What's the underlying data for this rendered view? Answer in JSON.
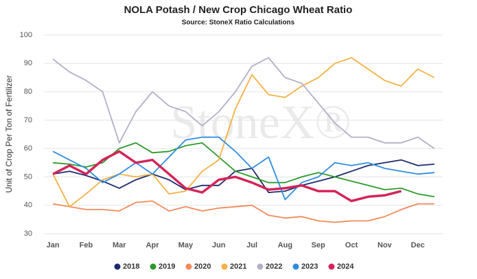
{
  "chart_data": {
    "type": "line",
    "title": "NOLA Potash / New Crop Chicago Wheat Ratio",
    "subtitle": "Source: StoneX Ratio Calculations",
    "y_label": "Unit of Crop Per Ton of Fertilizer",
    "watermark": "StoneX®",
    "categories": [
      "Jan",
      null,
      "Feb",
      null,
      "Mar",
      null,
      "Apr",
      null,
      "May",
      null,
      "Jun",
      null,
      "Jul",
      null,
      "Aug",
      null,
      "Sep",
      null,
      "Oct",
      null,
      "Nov",
      null,
      "Dec",
      null
    ],
    "ylim": [
      30,
      100
    ],
    "yticks": [
      30,
      40,
      50,
      60,
      70,
      80,
      90,
      100
    ],
    "grid": true,
    "legend": "bottom",
    "series": [
      {
        "name": "2018",
        "color": "#1b2a6e",
        "values": [
          51,
          52,
          50.5,
          48.5,
          46,
          49,
          51,
          49,
          45.5,
          47,
          47,
          52,
          53,
          44.5,
          45,
          47,
          48.5,
          50,
          52,
          54,
          55,
          56,
          54,
          54.5
        ]
      },
      {
        "name": "2019",
        "color": "#2a9a2a",
        "values": [
          55,
          54.5,
          53.5,
          55,
          60,
          62,
          58.5,
          59,
          61,
          62,
          57,
          52,
          50,
          48,
          48,
          50,
          51.5,
          50,
          48.5,
          47,
          45.5,
          46,
          44,
          43
        ]
      },
      {
        "name": "2020",
        "color": "#f28a5a",
        "values": [
          40.5,
          39.5,
          38.5,
          38.5,
          38,
          41,
          41.5,
          38,
          39.5,
          38,
          39,
          39.5,
          40,
          36.5,
          35.5,
          36,
          34.5,
          34,
          34.5,
          34.5,
          36,
          38.5,
          40.5,
          40.5
        ]
      },
      {
        "name": "2021",
        "color": "#f4b143",
        "values": [
          51,
          39.5,
          44,
          49,
          51,
          50,
          51,
          44,
          45,
          52,
          56,
          74,
          86,
          79,
          78,
          82,
          85,
          90,
          92,
          88,
          84,
          82,
          88,
          85
        ]
      },
      {
        "name": "2022",
        "color": "#b0b0c8",
        "values": [
          91.5,
          87,
          84,
          80,
          62,
          73,
          80,
          75,
          73,
          68,
          73,
          80,
          89,
          92,
          85,
          83,
          76,
          69,
          64,
          64,
          62,
          62,
          64,
          60
        ]
      },
      {
        "name": "2023",
        "color": "#2e8de0",
        "values": [
          59,
          56,
          53,
          48,
          51,
          55,
          51,
          57,
          63,
          64,
          64,
          59,
          53,
          57,
          42,
          48,
          50,
          55,
          54,
          55,
          53,
          52,
          51,
          51.5
        ]
      },
      {
        "name": "2024",
        "color": "#d42459",
        "values": [
          51,
          54,
          51,
          56,
          59,
          55,
          56,
          51,
          46,
          44.5,
          49,
          50,
          48,
          45.5,
          46,
          47,
          45,
          45,
          41.5,
          43,
          43.5,
          45,
          null,
          null
        ]
      }
    ]
  }
}
